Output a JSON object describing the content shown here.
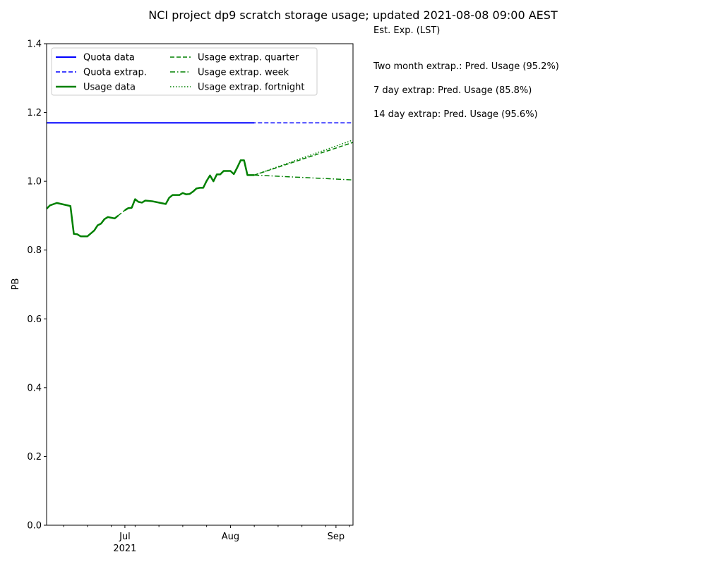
{
  "chart_data": {
    "type": "line",
    "title": "NCI project dp9 scratch storage usage; updated 2021-08-08 09:00 AEST",
    "ylabel": "PB",
    "xlabel": "",
    "ylim": [
      0.0,
      1.4
    ],
    "xlim": [
      "2021-06-08",
      "2021-09-06"
    ],
    "y_ticks": [
      "0.0",
      "0.2",
      "0.4",
      "0.6",
      "0.8",
      "1.0",
      "1.2",
      "1.4"
    ],
    "x_major_ticks": [
      {
        "date": "2021-07-01",
        "label": "Jul"
      },
      {
        "date": "2021-08-01",
        "label": "Aug"
      },
      {
        "date": "2021-09-01",
        "label": "Sep"
      }
    ],
    "x_minor_ticks": [
      "2021-06-13",
      "2021-06-20",
      "2021-06-27",
      "2021-07-04",
      "2021-07-11",
      "2021-07-18",
      "2021-07-25",
      "2021-08-08",
      "2021-08-15",
      "2021-08-22",
      "2021-08-29",
      "2021-09-05"
    ],
    "x_year_label": "2021",
    "legend_position": "top-left",
    "legend": [
      {
        "label": "Quota data",
        "color": "#0000ff",
        "style": "solid",
        "width": 2
      },
      {
        "label": "Quota extrap.",
        "color": "#0000ff",
        "style": "dashed",
        "width": 1.5
      },
      {
        "label": "Usage data",
        "color": "#008000",
        "style": "solid",
        "width": 2.5
      },
      {
        "label": "Usage extrap. quarter",
        "color": "#008000",
        "style": "dashed",
        "width": 1.5
      },
      {
        "label": "Usage extrap. week",
        "color": "#008000",
        "style": "dashdot",
        "width": 1.5
      },
      {
        "label": "Usage extrap. fortnight",
        "color": "#008000",
        "style": "dotted",
        "width": 1.5
      }
    ],
    "series": [
      {
        "name": "Quota data",
        "color": "#0000ff",
        "style": "solid",
        "width": 2,
        "points": [
          [
            "2021-06-08",
            1.17
          ],
          [
            "2021-06-29",
            1.17
          ],
          [
            "2021-07-01",
            1.17
          ],
          [
            "2021-08-08",
            1.17
          ]
        ]
      },
      {
        "name": "Quota extrap.",
        "color": "#0000ff",
        "style": "dashed",
        "width": 1.5,
        "points": [
          [
            "2021-06-29",
            1.17
          ],
          [
            "2021-07-01",
            1.17
          ],
          [
            "2021-09-06",
            1.17
          ]
        ]
      },
      {
        "name": "Usage data",
        "color": "#008000",
        "style": "solid",
        "width": 2.5,
        "points": [
          [
            "2021-06-08",
            0.92
          ],
          [
            "2021-06-09",
            0.93
          ],
          [
            "2021-06-11",
            0.937
          ],
          [
            "2021-06-15",
            0.928
          ],
          [
            "2021-06-16",
            0.847
          ],
          [
            "2021-06-17",
            0.846
          ],
          [
            "2021-06-18",
            0.84
          ],
          [
            "2021-06-20",
            0.84
          ],
          [
            "2021-06-22",
            0.857
          ],
          [
            "2021-06-23",
            0.872
          ],
          [
            "2021-06-24",
            0.877
          ],
          [
            "2021-06-25",
            0.89
          ],
          [
            "2021-06-26",
            0.896
          ],
          [
            "2021-06-28",
            0.892
          ],
          [
            "2021-06-29",
            0.9
          ]
        ]
      },
      {
        "name": "Usage data",
        "color": "#008000",
        "style": "solid",
        "width": 2.5,
        "points": [
          [
            "2021-07-01",
            0.916
          ],
          [
            "2021-07-02",
            0.922
          ],
          [
            "2021-07-03",
            0.923
          ],
          [
            "2021-07-04",
            0.948
          ],
          [
            "2021-07-05",
            0.94
          ],
          [
            "2021-07-06",
            0.938
          ],
          [
            "2021-07-07",
            0.944
          ],
          [
            "2021-07-09",
            0.942
          ],
          [
            "2021-07-11",
            0.938
          ],
          [
            "2021-07-13",
            0.934
          ],
          [
            "2021-07-14",
            0.952
          ],
          [
            "2021-07-15",
            0.96
          ],
          [
            "2021-07-17",
            0.96
          ],
          [
            "2021-07-18",
            0.966
          ],
          [
            "2021-07-19",
            0.962
          ],
          [
            "2021-07-20",
            0.963
          ],
          [
            "2021-07-21",
            0.97
          ],
          [
            "2021-07-22",
            0.979
          ],
          [
            "2021-07-23",
            0.981
          ],
          [
            "2021-07-24",
            0.981
          ],
          [
            "2021-07-25",
            1.001
          ],
          [
            "2021-07-26",
            1.017
          ],
          [
            "2021-07-27",
            1.0
          ],
          [
            "2021-07-28",
            1.02
          ],
          [
            "2021-07-29",
            1.02
          ],
          [
            "2021-07-30",
            1.03
          ],
          [
            "2021-08-01",
            1.03
          ],
          [
            "2021-08-02",
            1.021
          ],
          [
            "2021-08-03",
            1.04
          ],
          [
            "2021-08-04",
            1.061
          ],
          [
            "2021-08-05",
            1.061
          ],
          [
            "2021-08-06",
            1.018
          ],
          [
            "2021-08-08",
            1.018
          ]
        ]
      },
      {
        "name": "Usage extrap. quarter",
        "color": "#008000",
        "style": "dashed",
        "width": 1.5,
        "points": [
          [
            "2021-06-29",
            0.9
          ],
          [
            "2021-07-01",
            0.916
          ]
        ]
      },
      {
        "name": "Usage extrap. quarter",
        "color": "#008000",
        "style": "dashed",
        "width": 1.5,
        "points": [
          [
            "2021-08-08",
            1.018
          ],
          [
            "2021-09-06",
            1.113
          ]
        ]
      },
      {
        "name": "Usage extrap. fortnight",
        "color": "#008000",
        "style": "dotted",
        "width": 1.5,
        "points": [
          [
            "2021-08-08",
            1.018
          ],
          [
            "2021-09-06",
            1.12
          ]
        ]
      },
      {
        "name": "Usage extrap. week",
        "color": "#008000",
        "style": "dashdot",
        "width": 1.5,
        "points": [
          [
            "2021-08-08",
            1.018
          ],
          [
            "2021-09-06",
            1.004
          ]
        ]
      }
    ]
  },
  "annotations": {
    "header": "Est. Exp. (LST)",
    "lines": [
      "Two month extrap.: Pred. Usage (95.2%)",
      "7 day extrap: Pred. Usage (85.8%)",
      "14 day extrap: Pred. Usage (95.6%)"
    ]
  }
}
